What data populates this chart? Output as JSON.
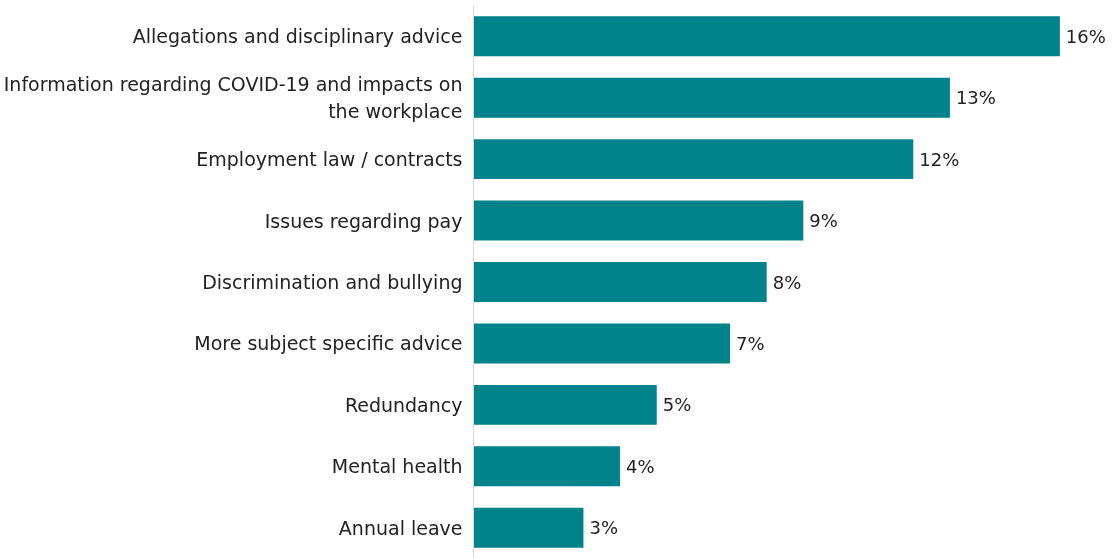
{
  "chart_data": {
    "type": "bar",
    "orientation": "horizontal",
    "categories": [
      "Allegations and disciplinary advice",
      "Information regarding COVID-19 and impacts on the workplace",
      "Employment law / contracts",
      "Issues regarding pay",
      "Discrimination and bullying",
      "More subject specific advice",
      "Redundancy",
      "Mental health",
      "Annual leave"
    ],
    "values": [
      16,
      13,
      12,
      9,
      8,
      7,
      5,
      4,
      3
    ],
    "value_labels": [
      "16%",
      "13%",
      "12%",
      "9%",
      "8%",
      "7%",
      "5%",
      "4%",
      "3%"
    ],
    "color": "#00838a"
  }
}
